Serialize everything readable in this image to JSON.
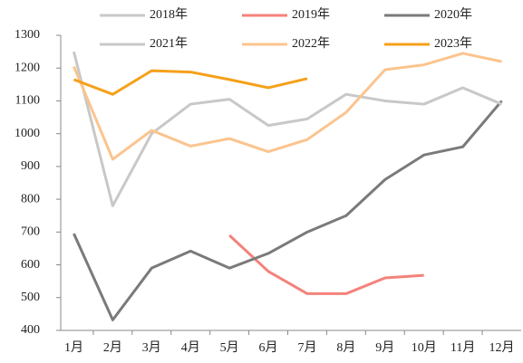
{
  "chart_data": {
    "type": "line",
    "categories": [
      "1月",
      "2月",
      "3月",
      "4月",
      "5月",
      "6月",
      "7月",
      "8月",
      "9月",
      "10月",
      "11月",
      "12月"
    ],
    "series": [
      {
        "name": "2018年",
        "color": "#c8c8c8",
        "values": [
          null,
          null,
          null,
          null,
          null,
          null,
          null,
          null,
          null,
          null,
          null,
          null
        ]
      },
      {
        "name": "2019年",
        "color": "#f4827b",
        "values": [
          null,
          null,
          null,
          null,
          690,
          580,
          512,
          512,
          560,
          568,
          null,
          null
        ]
      },
      {
        "name": "2020年",
        "color": "#7a7a7a",
        "values": [
          695,
          432,
          590,
          642,
          590,
          635,
          700,
          750,
          860,
          935,
          960,
          1100
        ]
      },
      {
        "name": "2021年",
        "color": "#c8c8c8",
        "values": [
          1250,
          780,
          1000,
          1090,
          1105,
          1025,
          1045,
          1120,
          1100,
          1090,
          1140,
          1090
        ]
      },
      {
        "name": "2022年",
        "color": "#fbc48e",
        "values": [
          1205,
          922,
          1010,
          962,
          985,
          945,
          982,
          1065,
          1195,
          1210,
          1245,
          1220
        ]
      },
      {
        "name": "2023年",
        "color": "#f5a01a",
        "values": [
          1165,
          1120,
          1192,
          1188,
          1165,
          1140,
          1168,
          null,
          null,
          null,
          null,
          null
        ]
      }
    ],
    "ylim": [
      400,
      1300
    ],
    "yticks": [
      400,
      500,
      600,
      700,
      800,
      900,
      1000,
      1100,
      1200,
      1300
    ],
    "grid": false,
    "legend": "top"
  }
}
